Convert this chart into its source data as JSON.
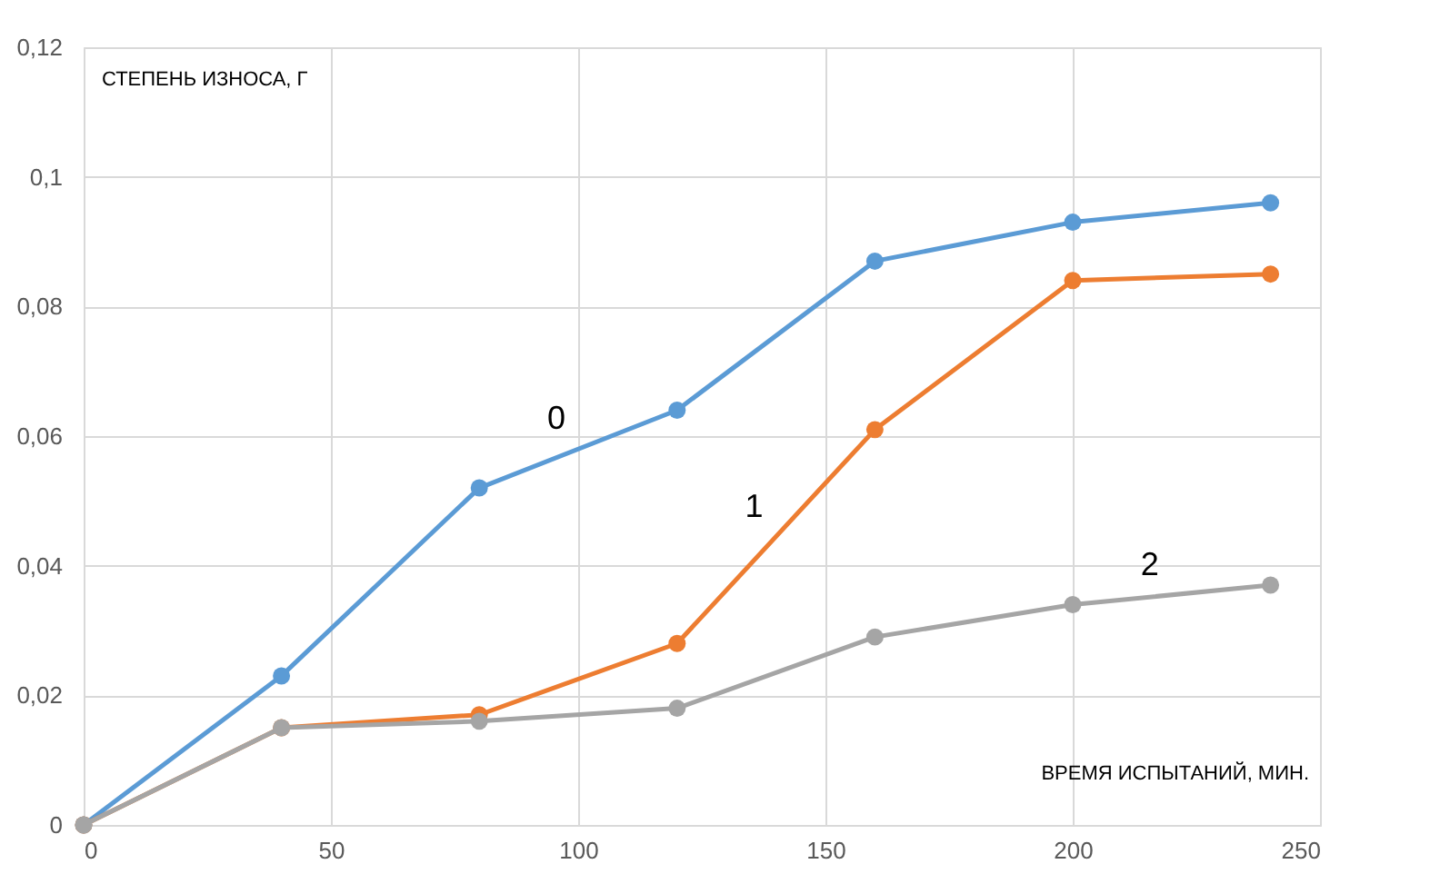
{
  "chart_data": {
    "type": "line",
    "xlabel": "ВРЕМЯ ИСПЫТАНИЙ, МИН.",
    "ylabel": "СТЕПЕНЬ ИЗНОСА, Г",
    "x": [
      0,
      40,
      80,
      120,
      160,
      200,
      240
    ],
    "series": [
      {
        "name": "0",
        "color": "#5b9bd5",
        "values": [
          0,
          0.023,
          0.052,
          0.064,
          0.087,
          0.093,
          0.096
        ]
      },
      {
        "name": "1",
        "color": "#ed7d31",
        "values": [
          0,
          0.015,
          0.017,
          0.028,
          0.061,
          0.084,
          0.085
        ]
      },
      {
        "name": "2",
        "color": "#a5a5a5",
        "values": [
          0,
          0.015,
          0.016,
          0.018,
          0.029,
          0.034,
          0.037
        ]
      }
    ],
    "xlim": [
      0,
      250
    ],
    "xticks": [
      0,
      50,
      100,
      150,
      200,
      250
    ],
    "ylim": [
      0,
      0.12
    ],
    "yticks": [
      0,
      {
        "value": 0.02,
        "label": "0,02"
      },
      {
        "value": 0.04,
        "label": "0,04"
      },
      {
        "value": 0.06,
        "label": "0,06"
      },
      {
        "value": 0.08,
        "label": "0,08"
      },
      {
        "value": 0.1,
        "label": "0,1"
      },
      {
        "value": 0.12,
        "label": "0,12"
      }
    ],
    "grid": true,
    "marker": "circle",
    "line_style": "solid"
  }
}
